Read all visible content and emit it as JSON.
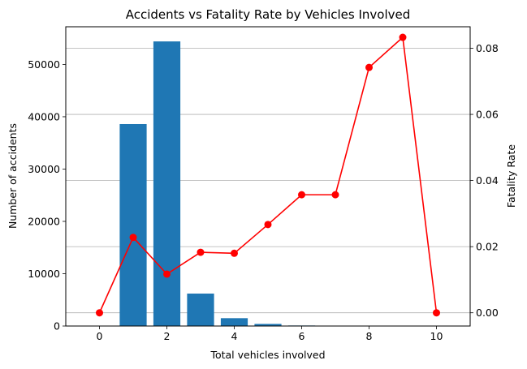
{
  "chart_data": {
    "type": "bar+line",
    "title": "Accidents vs Fatality Rate by Vehicles Involved",
    "xlabel": "Total vehicles involved",
    "ylabel_left": "Number of accidents",
    "ylabel_right": "Fatality Rate",
    "xlim": [
      -1,
      11
    ],
    "ylim_left": [
      0,
      57200
    ],
    "ylim_right": [
      -0.004,
      0.0865
    ],
    "x_ticks": [
      0,
      2,
      4,
      6,
      8,
      10
    ],
    "y_left_ticks": [
      0,
      10000,
      20000,
      30000,
      40000,
      50000
    ],
    "y_right_ticks": [
      0.0,
      0.02,
      0.04,
      0.06,
      0.08
    ],
    "y_right_tick_labels": [
      "0.00",
      "0.02",
      "0.04",
      "0.06",
      "0.08"
    ],
    "grid": "horizontal, right axis",
    "bars": {
      "x": [
        1,
        2,
        3,
        4,
        5,
        6,
        7
      ],
      "values": [
        38600,
        54400,
        6200,
        1500,
        400,
        100,
        60
      ],
      "color": "#1f77b4"
    },
    "line": {
      "x": [
        0,
        1,
        2,
        3,
        4,
        5,
        6,
        7,
        8,
        9,
        10
      ],
      "values": [
        0.0,
        0.0228,
        0.0117,
        0.0183,
        0.018,
        0.0267,
        0.0357,
        0.0357,
        0.0742,
        0.0833,
        0.0
      ],
      "color": "#ff0000"
    }
  }
}
